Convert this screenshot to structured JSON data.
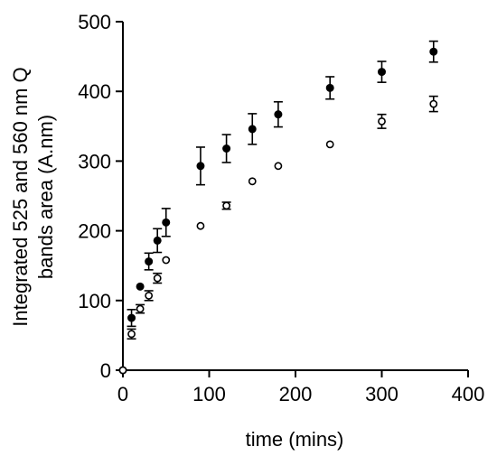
{
  "chart_data": {
    "type": "scatter",
    "title": "",
    "xlabel": "time  (mins)",
    "ylabel_lines": [
      "Integrated 525 and 560 nm Q",
      "bands area  (A.nm)"
    ],
    "xlim": [
      0,
      400
    ],
    "ylim": [
      0,
      500
    ],
    "xticks": [
      0,
      100,
      200,
      300,
      400
    ],
    "yticks": [
      0,
      100,
      200,
      300,
      400,
      500
    ],
    "grid": false,
    "legend": "none",
    "series": [
      {
        "marker": "filled-circle",
        "color": "#000000",
        "x": [
          0,
          10,
          20,
          30,
          40,
          50,
          90,
          120,
          150,
          180,
          240,
          300,
          360
        ],
        "y": [
          0,
          75,
          120,
          156,
          186,
          212,
          293,
          318,
          346,
          367,
          405,
          428,
          457
        ],
        "err": [
          0,
          12,
          0,
          12,
          17,
          20,
          27,
          20,
          22,
          18,
          16,
          15,
          15
        ]
      },
      {
        "marker": "open-circle",
        "color": "#000000",
        "x": [
          0,
          10,
          20,
          30,
          40,
          50,
          90,
          120,
          150,
          180,
          240,
          300,
          360
        ],
        "y": [
          0,
          52,
          88,
          107,
          132,
          158,
          207,
          236,
          271,
          293,
          324,
          357,
          382
        ],
        "err": [
          0,
          7,
          6,
          7,
          7,
          0,
          0,
          5,
          0,
          0,
          0,
          10,
          11
        ]
      }
    ]
  }
}
